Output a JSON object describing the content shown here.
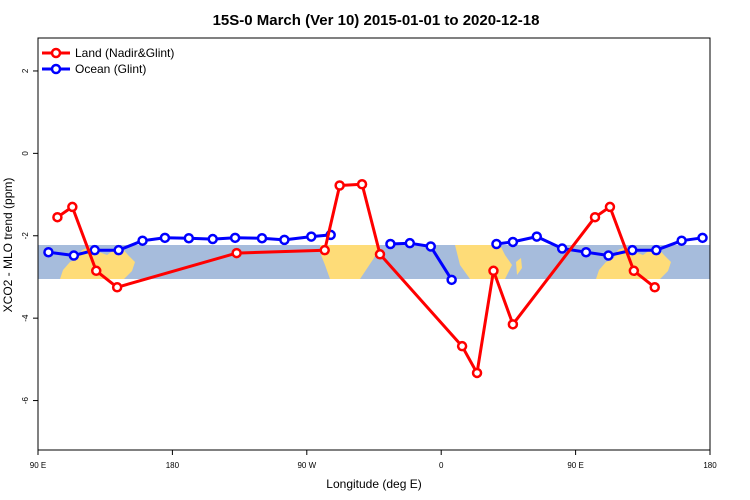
{
  "chart_data": {
    "type": "line",
    "title": "15S-0 March (Ver 10)   2015-01-01 to 2020-12-18",
    "xlabel": "Longitude (deg E)",
    "ylabel": "XCO2 - MLO trend (ppm)",
    "x_tick_labels": [
      "90 E",
      "180",
      "90 W",
      "0",
      "90 E",
      "180"
    ],
    "x_tick_positions": [
      90,
      180,
      270,
      360,
      450,
      540
    ],
    "y_tick_labels": [
      "-6",
      "-4",
      "-2",
      "0",
      "2"
    ],
    "y_tick_values": [
      -6,
      -4,
      -2,
      0,
      2
    ],
    "xlim": [
      90,
      540
    ],
    "ylim": [
      -7.2,
      2.8
    ],
    "grid": false,
    "legend_position": "top-left",
    "colors": {
      "land": "#ff0000",
      "ocean": "#0000ff",
      "land_band": "#fedc78",
      "ocean_band": "#a6bcdc"
    },
    "series": [
      {
        "name": "Land (Nadir&Glint)",
        "color": "#ff0000",
        "points": [
          [
            103,
            -1.55
          ],
          [
            113,
            -1.3
          ],
          [
            129,
            -2.85
          ],
          [
            143,
            -3.25
          ],
          [
            223,
            -2.42
          ],
          [
            282,
            -2.35
          ],
          [
            292,
            -0.78
          ],
          [
            307,
            -0.75
          ],
          [
            319,
            -2.45
          ],
          [
            374,
            -4.68
          ],
          [
            384,
            -5.33
          ],
          [
            395,
            -2.85
          ],
          [
            408,
            -4.15
          ],
          [
            463,
            -1.55
          ],
          [
            473,
            -1.3
          ],
          [
            489,
            -2.85
          ],
          [
            503,
            -3.25
          ]
        ]
      },
      {
        "name": "Ocean (Glint)",
        "color": "#0000ff",
        "points": [
          [
            97,
            -2.4
          ],
          [
            114,
            -2.48
          ],
          [
            128,
            -2.35
          ],
          [
            144,
            -2.35
          ],
          [
            160,
            -2.12
          ],
          [
            175,
            -2.05
          ],
          [
            191,
            -2.06
          ],
          [
            207,
            -2.08
          ],
          [
            222,
            -2.05
          ],
          [
            240,
            -2.06
          ],
          [
            255,
            -2.1
          ],
          [
            273,
            -2.02
          ],
          [
            286,
            -1.98
          ],
          null,
          [
            326,
            -2.2
          ],
          [
            339,
            -2.18
          ],
          [
            353,
            -2.26
          ],
          [
            367,
            -3.07
          ],
          null,
          [
            397,
            -2.2
          ],
          [
            408,
            -2.15
          ],
          [
            424,
            -2.02
          ],
          [
            441,
            -2.31
          ],
          [
            457,
            -2.4
          ],
          [
            472,
            -2.48
          ],
          [
            488,
            -2.35
          ],
          [
            504,
            -2.35
          ],
          [
            521,
            -2.12
          ],
          [
            535,
            -2.05
          ]
        ]
      }
    ]
  }
}
